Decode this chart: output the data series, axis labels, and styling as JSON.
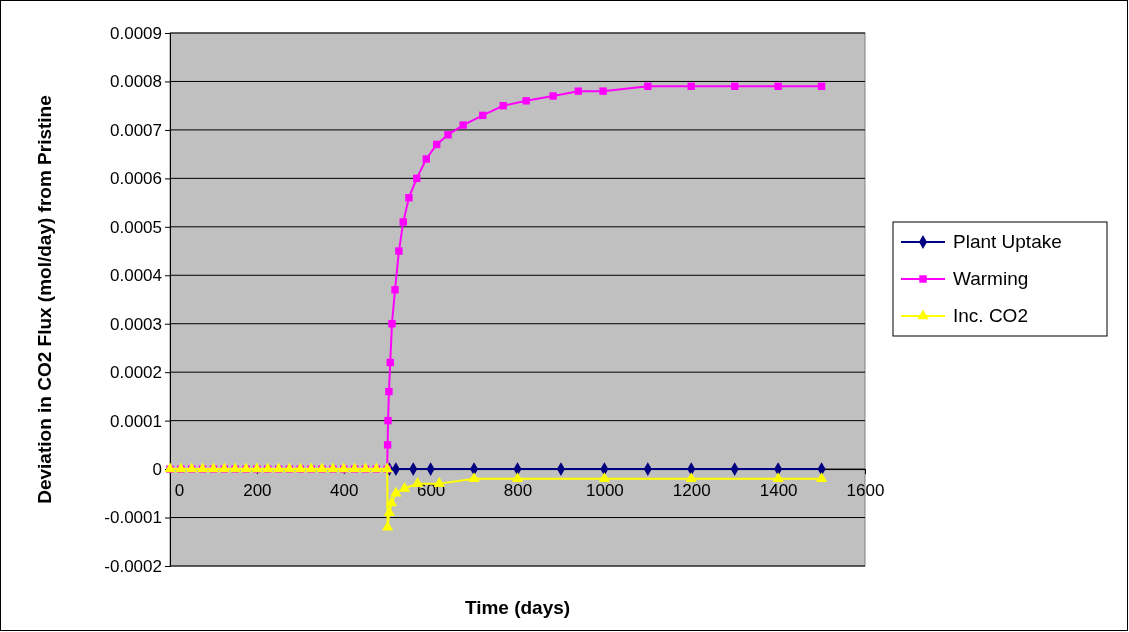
{
  "chart_data": {
    "type": "line",
    "xlabel": "Time (days)",
    "ylabel": "Deviation in CO2 Flux (mol/day) from Pristine",
    "xlim": [
      0,
      1600
    ],
    "xticks": [
      0,
      200,
      400,
      600,
      800,
      1000,
      1200,
      1400,
      1600
    ],
    "ylim": [
      -0.0002,
      0.0009
    ],
    "yticks": [
      -0.0002,
      -0.0001,
      0,
      0.0001,
      0.0002,
      0.0003,
      0.0004,
      0.0005,
      0.0006,
      0.0007,
      0.0008,
      0.0009
    ],
    "grid": "y",
    "legend": "right",
    "series": [
      {
        "name": "Plant Uptake",
        "color": "#000080",
        "marker": "diamond",
        "x": [
          505,
          520,
          560,
          600,
          700,
          800,
          900,
          1000,
          1100,
          1200,
          1300,
          1400,
          1500
        ],
        "values": [
          0,
          0,
          0,
          0,
          0,
          0,
          0,
          0,
          0,
          0,
          0,
          0,
          0
        ]
      },
      {
        "name": "Warming",
        "color": "#ff00ff",
        "marker": "square",
        "x": [
          0,
          25,
          50,
          75,
          100,
          125,
          150,
          175,
          200,
          225,
          250,
          275,
          300,
          325,
          350,
          375,
          400,
          425,
          450,
          475,
          500,
          501,
          502,
          504,
          507,
          511,
          518,
          527,
          537,
          550,
          568,
          590,
          614,
          640,
          675,
          720,
          767,
          820,
          882,
          940,
          997,
          1100,
          1200,
          1300,
          1400,
          1500
        ],
        "values": [
          0,
          0,
          0,
          0,
          0,
          0,
          0,
          0,
          0,
          0,
          0,
          0,
          0,
          0,
          0,
          0,
          0,
          0,
          0,
          0,
          0,
          5e-05,
          0.0001,
          0.00016,
          0.00022,
          0.0003,
          0.00037,
          0.00045,
          0.00051,
          0.00056,
          0.0006,
          0.00064,
          0.00067,
          0.00069,
          0.00071,
          0.00073,
          0.00075,
          0.00076,
          0.00077,
          0.00078,
          0.00078,
          0.00079,
          0.00079,
          0.00079,
          0.00079,
          0.00079
        ]
      },
      {
        "name": "Inc. CO2",
        "color": "#ffff00",
        "marker": "triangle",
        "x": [
          0,
          25,
          50,
          75,
          100,
          125,
          150,
          175,
          200,
          225,
          250,
          275,
          300,
          325,
          350,
          375,
          400,
          425,
          450,
          475,
          500,
          501,
          505,
          510,
          520,
          540,
          570,
          620,
          700,
          800,
          1000,
          1200,
          1400,
          1500
        ],
        "values": [
          0,
          0,
          0,
          0,
          0,
          0,
          0,
          0,
          0,
          0,
          0,
          0,
          0,
          0,
          0,
          0,
          0,
          0,
          0,
          0,
          0,
          -0.00012,
          -9e-05,
          -7e-05,
          -5e-05,
          -4e-05,
          -3e-05,
          -3e-05,
          -2e-05,
          -2e-05,
          -2e-05,
          -2e-05,
          -2e-05,
          -2e-05
        ]
      }
    ]
  }
}
